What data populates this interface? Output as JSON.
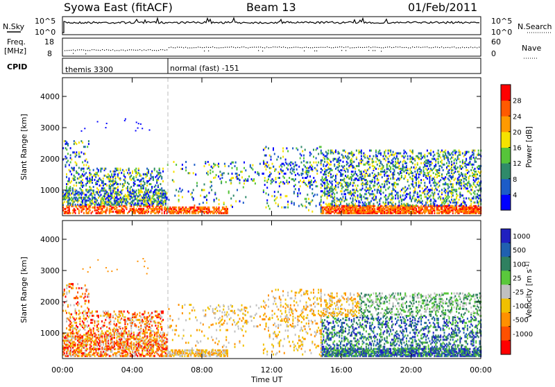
{
  "header": {
    "station": "Syowa East (fitACF)",
    "beam": "Beam 13",
    "date": "01/Feb/2011"
  },
  "sky_panel": {
    "label": "N.Sky",
    "left_ticks": [
      "10^5",
      "10^0"
    ],
    "right_ticks": [
      "10^5",
      "10^0"
    ],
    "right_label": "N.Search"
  },
  "freq_panel": {
    "label_line1": "Freq.",
    "label_line2": "[MHz]",
    "left_ticks": [
      "18",
      "8"
    ],
    "right_ticks": [
      "60",
      "0"
    ],
    "right_label": "Nave"
  },
  "cpid_panel": {
    "label": "CPID",
    "modes": [
      {
        "name": "themis 3300",
        "start_hour": 0,
        "end_hour": 6
      },
      {
        "name": "normal (fast) -151",
        "start_hour": 6,
        "end_hour": 24
      }
    ]
  },
  "colors": {
    "power_scale": [
      "#0000ff",
      "#1c5cc8",
      "#2f8a6a",
      "#56c43a",
      "#f5e200",
      "#ff9a00",
      "#ff5a00",
      "#ff0000"
    ],
    "velocity_scale": [
      "#2020c0",
      "#2060b0",
      "#2f8060",
      "#5ac83c",
      "#c0c0c0",
      "#f0c000",
      "#ff9000",
      "#ff5000",
      "#ff0000"
    ]
  },
  "chart_data": [
    {
      "type": "heatmap",
      "title": "",
      "xlabel": "",
      "ylabel": "Slant Range [km]",
      "xlim": [
        0,
        24
      ],
      "ylim": [
        180,
        4600
      ],
      "x_tick_labels": [
        "00:00",
        "04:00",
        "08:00",
        "12:00",
        "16:00",
        "20:00",
        "00:00"
      ],
      "y_ticks": [
        1000,
        2000,
        3000,
        4000
      ],
      "colorbar_label": "Power [dB]",
      "colorbar_ticks": [
        "4",
        "8",
        "12",
        "16",
        "20",
        "24",
        "28"
      ],
      "colorbar_range": [
        0,
        30
      ]
    },
    {
      "type": "heatmap",
      "title": "",
      "xlabel": "Time UT",
      "ylabel": "Slant Range [km]",
      "xlim": [
        0,
        24
      ],
      "ylim": [
        180,
        4600
      ],
      "x_tick_labels": [
        "00:00",
        "04:00",
        "08:00",
        "12:00",
        "16:00",
        "20:00",
        "00:00"
      ],
      "y_ticks": [
        1000,
        2000,
        3000,
        4000
      ],
      "colorbar_label": "Velocity [m s^-1]",
      "colorbar_ticks": [
        "1000",
        "500",
        "100",
        "25",
        "-25",
        "-100",
        "-500",
        "-1000"
      ]
    }
  ],
  "axis": {
    "x_label": "Time UT"
  }
}
